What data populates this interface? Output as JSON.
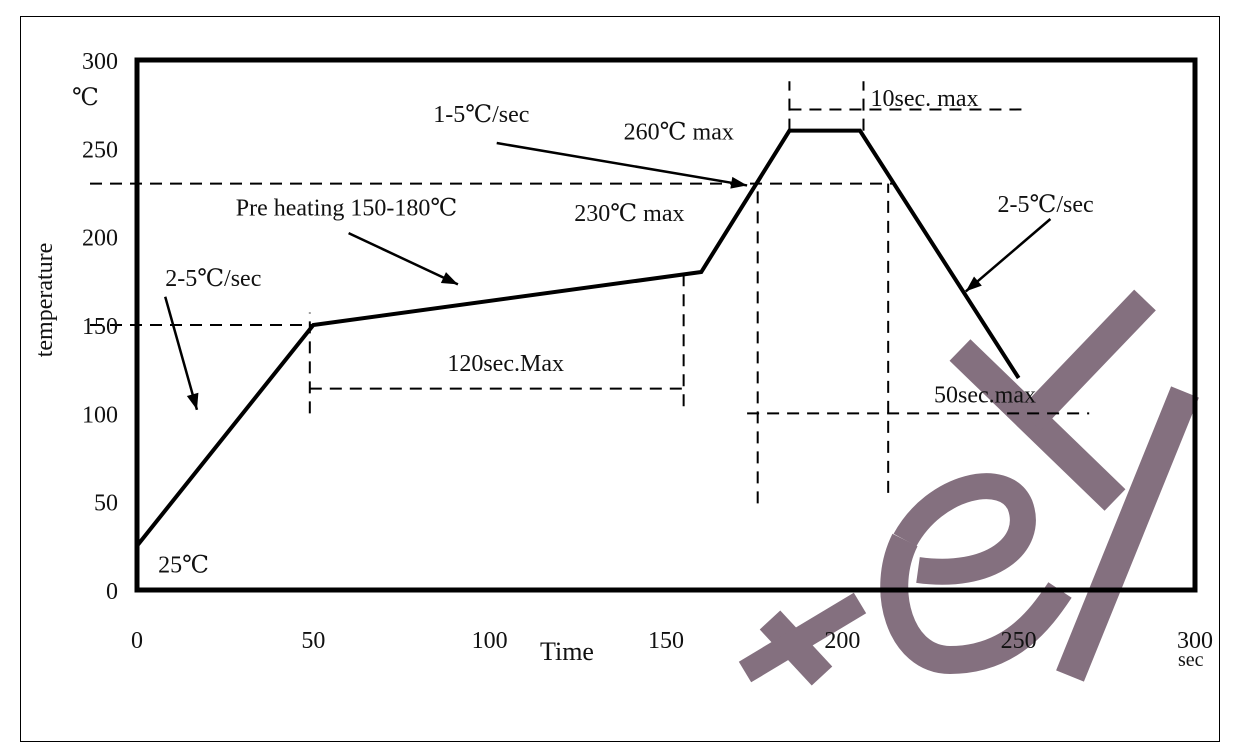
{
  "chart_data": {
    "type": "line",
    "xlabel": "Time",
    "ylabel": "temperature",
    "x_unit": "sec",
    "y_unit": "℃",
    "xlim": [
      0,
      300
    ],
    "ylim": [
      0,
      300
    ],
    "x_ticks": [
      "0",
      "50",
      "100",
      "150",
      "200",
      "250",
      "300"
    ],
    "y_ticks": [
      "0",
      "50",
      "100",
      "150",
      "200",
      "250",
      "300"
    ],
    "grid": false,
    "series": [
      {
        "x": [
          0,
          50,
          160,
          185,
          205,
          250
        ],
        "y": [
          25,
          150,
          180,
          260,
          260,
          120
        ]
      }
    ],
    "reference_lines": [
      {
        "type": "h",
        "y": 150,
        "x_range": [
          0,
          50
        ]
      },
      {
        "type": "h",
        "y": 230,
        "x_range": [
          0,
          215
        ]
      },
      {
        "type": "h",
        "y": 100,
        "x_range": [
          173,
          270
        ]
      },
      {
        "type": "h",
        "y": 114,
        "x_range": [
          49,
          155
        ]
      },
      {
        "type": "h",
        "y": 272,
        "x_range": [
          185,
          251
        ]
      },
      {
        "type": "v",
        "x": 49,
        "y_range": [
          100,
          157
        ]
      },
      {
        "type": "v",
        "x": 155,
        "y_range": [
          104,
          180
        ]
      },
      {
        "type": "v",
        "x": 176,
        "y_range": [
          49,
          230
        ]
      },
      {
        "type": "v",
        "x": 185,
        "y_range": [
          260,
          288
        ]
      },
      {
        "type": "v",
        "x": 206,
        "y_range": [
          260,
          288
        ]
      },
      {
        "type": "v",
        "x": 213,
        "y_range": [
          55,
          230
        ]
      }
    ],
    "annotations": [
      {
        "text": "2-5℃/sec",
        "x": 8,
        "y": 172
      },
      {
        "text": "Pre heating  150-180℃",
        "x": 28,
        "y": 212
      },
      {
        "text": "1-5℃/sec",
        "x": 84,
        "y": 265
      },
      {
        "text": "260℃  max",
        "x": 138,
        "y": 255
      },
      {
        "text": "230℃  max",
        "x": 124,
        "y": 209
      },
      {
        "text": "10sec. max",
        "x": 208,
        "y": 274
      },
      {
        "text": "2-5℃/sec",
        "x": 244,
        "y": 214
      },
      {
        "text": "120sec.Max",
        "x": 88,
        "y": 124
      },
      {
        "text": "50sec.max",
        "x": 226,
        "y": 106
      },
      {
        "text": "25℃",
        "x": 6,
        "y": 10
      }
    ],
    "arrows": [
      {
        "from": [
          8,
          166
        ],
        "to": [
          17,
          102
        ]
      },
      {
        "from": [
          60,
          202
        ],
        "to": [
          91,
          173
        ]
      },
      {
        "from": [
          102,
          253
        ],
        "to": [
          173,
          229
        ]
      },
      {
        "from": [
          259,
          210
        ],
        "to": [
          235,
          169
        ]
      }
    ]
  },
  "watermark": {
    "text": "tek",
    "color": "#84707f"
  }
}
